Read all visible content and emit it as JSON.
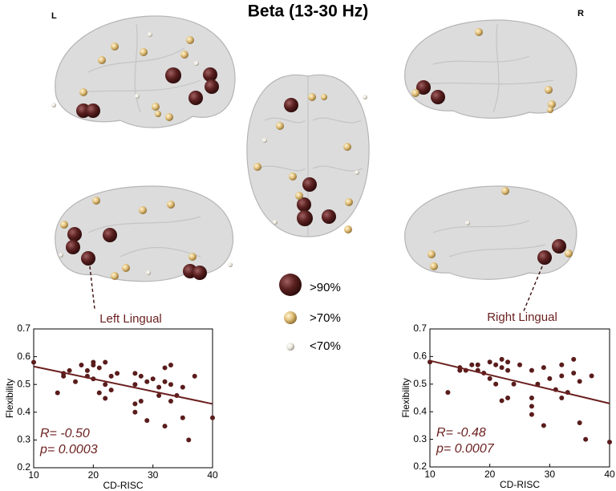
{
  "figure": {
    "title": "Beta (13-30 Hz)",
    "left_label": "L",
    "right_label": "R",
    "legend": [
      ">90%",
      ">70%",
      "<70%"
    ],
    "annotations": [
      "Left Lingual",
      "Right Lingual"
    ]
  },
  "chart_data": [
    {
      "type": "scatter",
      "xlabel": "CD-RISC",
      "ylabel": "Flexibility",
      "color": "#5a1c1c",
      "x": [
        10,
        14,
        15,
        15,
        16,
        17,
        18,
        19,
        19,
        20,
        20,
        20,
        21,
        21,
        22,
        22,
        22,
        23,
        23,
        24,
        27,
        27,
        27,
        27,
        28,
        28,
        29,
        29,
        30,
        31,
        31,
        32,
        32,
        32,
        33,
        33,
        33,
        34,
        35,
        35,
        36,
        37,
        40
      ],
      "values": [
        0.58,
        0.47,
        0.53,
        0.54,
        0.55,
        0.51,
        0.57,
        0.55,
        0.53,
        0.57,
        0.58,
        0.52,
        0.56,
        0.47,
        0.58,
        0.5,
        0.45,
        0.53,
        0.48,
        0.54,
        0.54,
        0.5,
        0.43,
        0.4,
        0.53,
        0.44,
        0.51,
        0.37,
        0.52,
        0.49,
        0.46,
        0.56,
        0.51,
        0.35,
        0.57,
        0.5,
        0.44,
        0.46,
        0.49,
        0.38,
        0.3,
        0.53,
        0.38
      ],
      "fit_line": {
        "x": [
          10,
          40
        ],
        "values": [
          0.565,
          0.43
        ],
        "color": "#6b1f1f"
      },
      "annotations": [
        "R= -0.50",
        "p= 0.0003"
      ],
      "xlim": [
        10,
        40
      ],
      "xticks": [
        10,
        20,
        30,
        40
      ],
      "ylim": [
        0.2,
        0.7
      ],
      "yticks": [
        0.2,
        0.3,
        0.4,
        0.5,
        0.6,
        0.7
      ]
    },
    {
      "type": "scatter",
      "xlabel": "CD-RISC",
      "ylabel": "Flexibility",
      "color": "#5a1c1c",
      "x": [
        10,
        13,
        15,
        15,
        16,
        17,
        18,
        18,
        19,
        20,
        20,
        21,
        21,
        22,
        22,
        22,
        23,
        23,
        23,
        24,
        25,
        27,
        27,
        27,
        27,
        28,
        29,
        29,
        30,
        31,
        32,
        32,
        32,
        33,
        34,
        34,
        35,
        35,
        36,
        37,
        40
      ],
      "values": [
        0.58,
        0.47,
        0.56,
        0.55,
        0.55,
        0.57,
        0.57,
        0.55,
        0.54,
        0.58,
        0.52,
        0.57,
        0.5,
        0.59,
        0.56,
        0.44,
        0.58,
        0.55,
        0.45,
        0.5,
        0.57,
        0.55,
        0.45,
        0.42,
        0.39,
        0.5,
        0.35,
        0.56,
        0.52,
        0.48,
        0.57,
        0.53,
        0.45,
        0.47,
        0.59,
        0.54,
        0.51,
        0.36,
        0.3,
        0.53,
        0.29
      ],
      "fit_line": {
        "x": [
          10,
          40
        ],
        "values": [
          0.585,
          0.43
        ],
        "color": "#6b1f1f"
      },
      "annotations": [
        "R= -0.48",
        "p= 0.0007"
      ],
      "xlim": [
        10,
        40
      ],
      "xticks": [
        10,
        20,
        30,
        40
      ],
      "ylim": [
        0.2,
        0.7
      ],
      "yticks": [
        0.2,
        0.3,
        0.4,
        0.5,
        0.6,
        0.7
      ]
    }
  ]
}
